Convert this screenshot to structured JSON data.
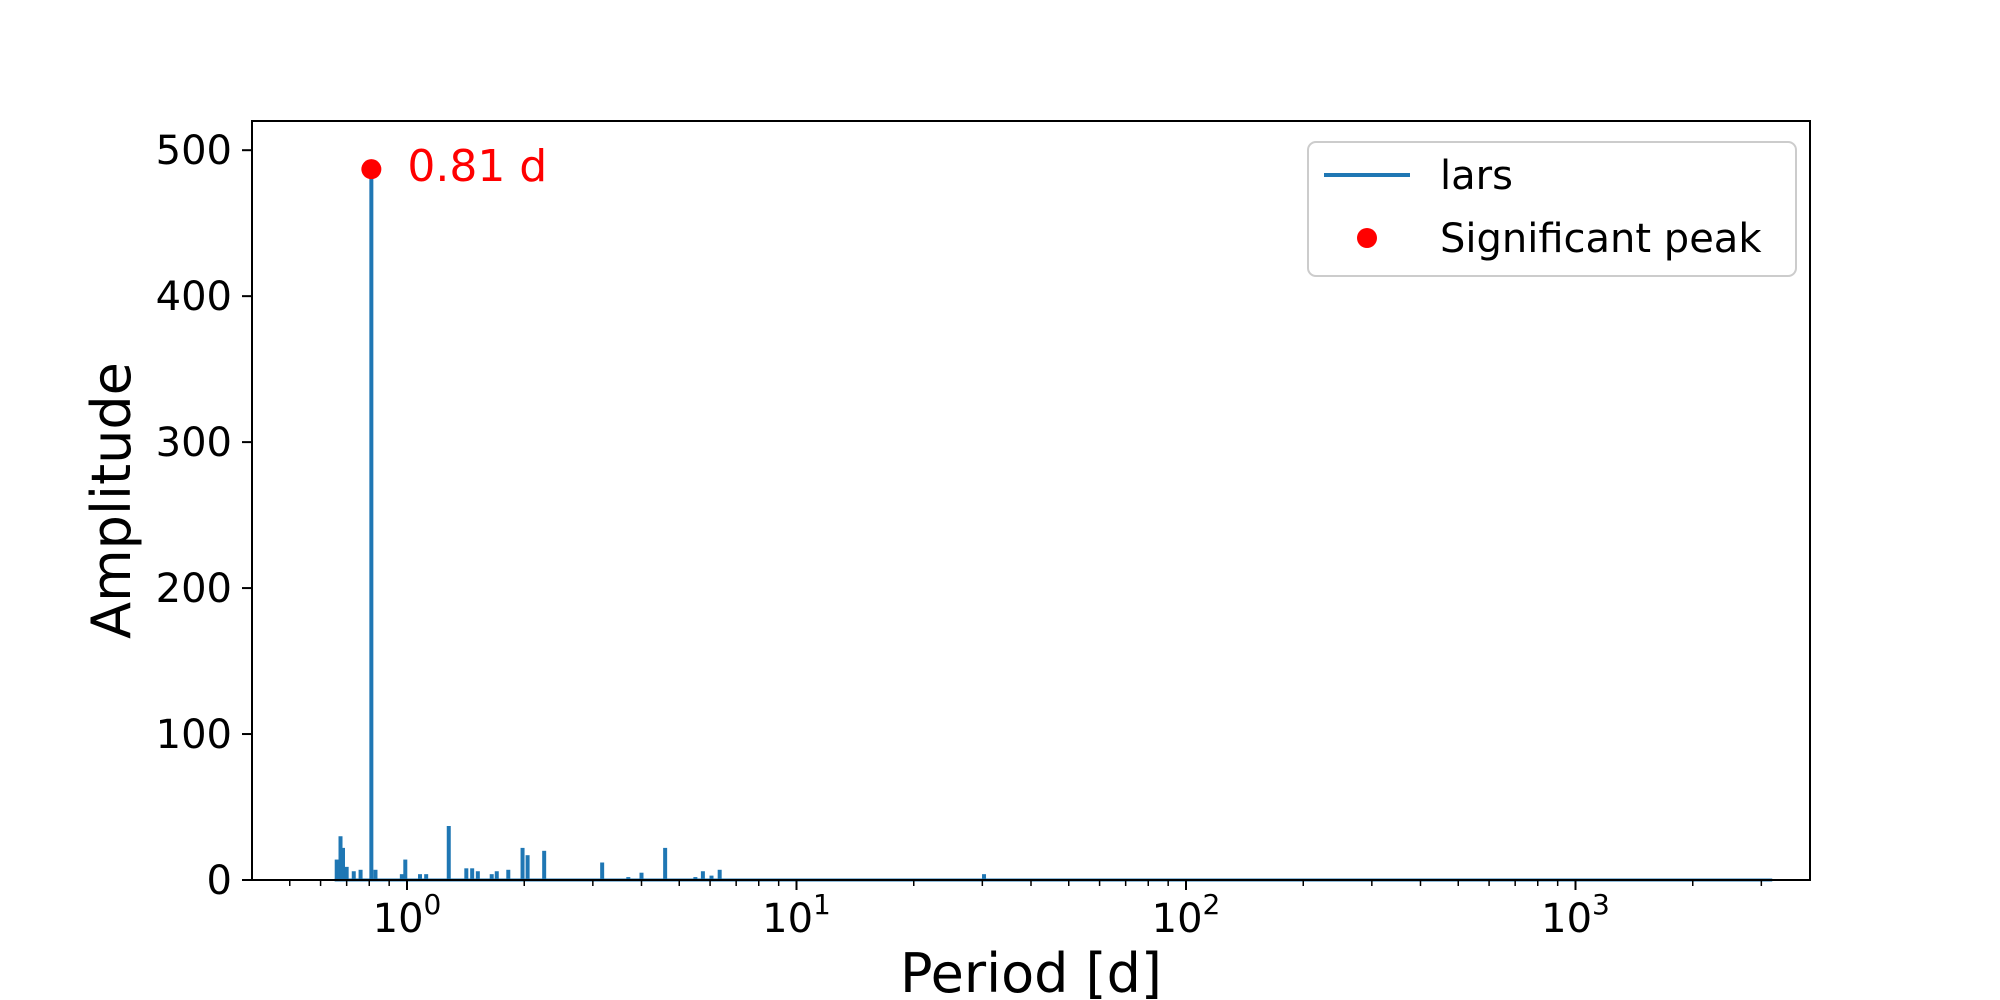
{
  "chart_data": {
    "type": "line",
    "xlabel": "Period [d]",
    "ylabel": "Amplitude",
    "xscale": "log",
    "xlim": [
      0.4,
      4000
    ],
    "ylim": [
      0,
      520
    ],
    "grid": false,
    "legend_position": "top-right",
    "x_ticks": [
      {
        "value": 1,
        "base": "10",
        "exp": "0"
      },
      {
        "value": 10,
        "base": "10",
        "exp": "1"
      },
      {
        "value": 100,
        "base": "10",
        "exp": "2"
      },
      {
        "value": 1000,
        "base": "10",
        "exp": "3"
      }
    ],
    "y_ticks": [
      {
        "value": 0,
        "label": "0"
      },
      {
        "value": 100,
        "label": "100"
      },
      {
        "value": 200,
        "label": "200"
      },
      {
        "value": 300,
        "label": "300"
      },
      {
        "value": 400,
        "label": "400"
      },
      {
        "value": 500,
        "label": "500"
      }
    ],
    "series": [
      {
        "name": "lars",
        "color": "#1f77b4",
        "peaks": [
          {
            "x": 0.66,
            "y": 14
          },
          {
            "x": 0.675,
            "y": 30
          },
          {
            "x": 0.685,
            "y": 22
          },
          {
            "x": 0.7,
            "y": 9
          },
          {
            "x": 0.73,
            "y": 6
          },
          {
            "x": 0.76,
            "y": 7
          },
          {
            "x": 0.81,
            "y": 487
          },
          {
            "x": 0.83,
            "y": 7
          },
          {
            "x": 0.97,
            "y": 4
          },
          {
            "x": 0.99,
            "y": 14
          },
          {
            "x": 1.08,
            "y": 4
          },
          {
            "x": 1.12,
            "y": 4
          },
          {
            "x": 1.28,
            "y": 37
          },
          {
            "x": 1.42,
            "y": 8
          },
          {
            "x": 1.47,
            "y": 8
          },
          {
            "x": 1.52,
            "y": 6
          },
          {
            "x": 1.65,
            "y": 4
          },
          {
            "x": 1.7,
            "y": 6
          },
          {
            "x": 1.82,
            "y": 7
          },
          {
            "x": 1.98,
            "y": 22
          },
          {
            "x": 2.04,
            "y": 17
          },
          {
            "x": 2.25,
            "y": 20
          },
          {
            "x": 3.17,
            "y": 12
          },
          {
            "x": 3.7,
            "y": 2
          },
          {
            "x": 4.0,
            "y": 5
          },
          {
            "x": 4.6,
            "y": 22
          },
          {
            "x": 5.5,
            "y": 2
          },
          {
            "x": 5.75,
            "y": 6
          },
          {
            "x": 6.05,
            "y": 3
          },
          {
            "x": 6.35,
            "y": 7
          },
          {
            "x": 30.3,
            "y": 4
          }
        ]
      },
      {
        "name": "Significant peak",
        "color": "#ff0000",
        "points": [
          {
            "x": 0.81,
            "y": 487
          }
        ]
      }
    ],
    "annotations": [
      {
        "text": "0.81 d",
        "x": 0.81,
        "y": 487,
        "color": "#ff0000"
      }
    ]
  }
}
